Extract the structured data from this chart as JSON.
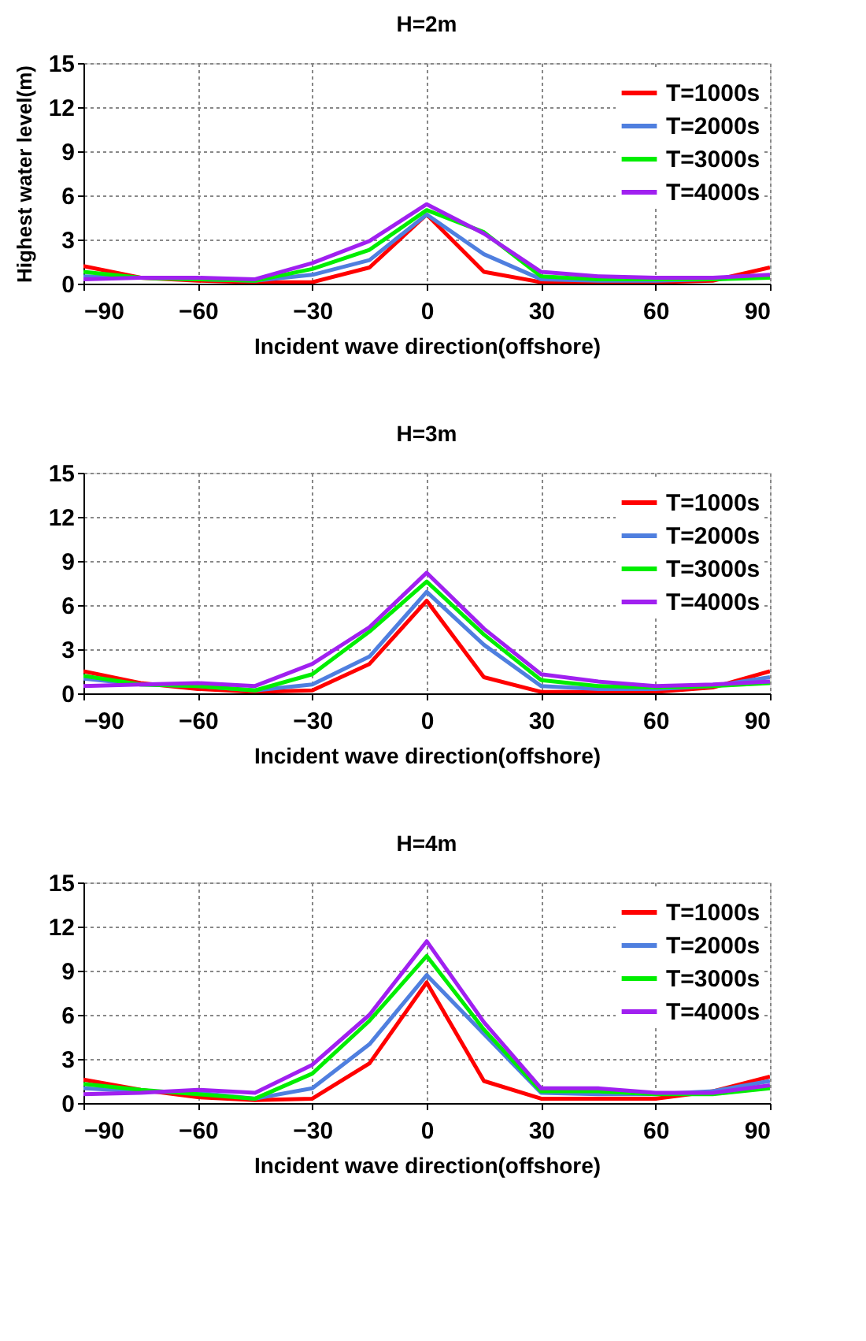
{
  "chart_data": [
    {
      "type": "line",
      "title": "H=2m",
      "xlabel": "Incident wave direction(offshore)",
      "ylabel": "Highest water level(m)",
      "x": [
        -90,
        -75,
        -60,
        -45,
        -30,
        -15,
        0,
        15,
        30,
        45,
        60,
        75,
        90
      ],
      "series": [
        {
          "name": "T=1000s",
          "color": "#ff0000",
          "values": [
            1.2,
            0.4,
            0.2,
            0.1,
            0.1,
            1.1,
            4.7,
            0.8,
            0.1,
            0.1,
            0.1,
            0.2,
            1.1
          ]
        },
        {
          "name": "T=2000s",
          "color": "#4f7fdf",
          "values": [
            0.5,
            0.4,
            0.3,
            0.2,
            0.6,
            1.6,
            4.7,
            2.0,
            0.3,
            0.2,
            0.2,
            0.3,
            0.5
          ]
        },
        {
          "name": "T=3000s",
          "color": "#00ee00",
          "values": [
            0.8,
            0.4,
            0.3,
            0.2,
            1.0,
            2.3,
            5.0,
            3.5,
            0.5,
            0.3,
            0.3,
            0.3,
            0.4
          ]
        },
        {
          "name": "T=4000s",
          "color": "#a020f0",
          "values": [
            0.3,
            0.4,
            0.4,
            0.3,
            1.4,
            2.9,
            5.4,
            3.4,
            0.8,
            0.5,
            0.4,
            0.4,
            0.6
          ]
        }
      ],
      "xlim": [
        -90,
        90
      ],
      "xticks": [
        -90,
        -60,
        -30,
        0,
        30,
        60,
        90
      ],
      "ylim": [
        0,
        15
      ],
      "yticks": [
        0,
        3,
        6,
        9,
        12,
        15
      ],
      "grid": true,
      "legend": "top right",
      "line_style": "solid"
    },
    {
      "type": "line",
      "title": "H=3m",
      "xlabel": "Incident wave direction(offshore)",
      "x": [
        -90,
        -75,
        -60,
        -45,
        -30,
        -15,
        0,
        15,
        30,
        45,
        60,
        75,
        90
      ],
      "series": [
        {
          "name": "T=1000s",
          "color": "#ff0000",
          "values": [
            1.5,
            0.7,
            0.3,
            0.1,
            0.2,
            2.0,
            6.3,
            1.1,
            0.1,
            0.1,
            0.1,
            0.4,
            1.5
          ]
        },
        {
          "name": "T=2000s",
          "color": "#4f7fdf",
          "values": [
            1.0,
            0.6,
            0.5,
            0.2,
            0.6,
            2.5,
            6.9,
            3.3,
            0.5,
            0.3,
            0.3,
            0.5,
            1.1
          ]
        },
        {
          "name": "T=3000s",
          "color": "#00ee00",
          "values": [
            1.2,
            0.6,
            0.5,
            0.2,
            1.3,
            4.2,
            7.6,
            4.0,
            0.9,
            0.5,
            0.4,
            0.5,
            0.7
          ]
        },
        {
          "name": "T=4000s",
          "color": "#a020f0",
          "values": [
            0.5,
            0.6,
            0.7,
            0.5,
            2.0,
            4.5,
            8.2,
            4.4,
            1.3,
            0.8,
            0.5,
            0.6,
            0.8
          ]
        }
      ],
      "xlim": [
        -90,
        90
      ],
      "xticks": [
        -90,
        -60,
        -30,
        0,
        30,
        60,
        90
      ],
      "ylim": [
        0,
        15
      ],
      "yticks": [
        0,
        3,
        6,
        9,
        12,
        15
      ],
      "grid": true,
      "legend": "top right",
      "line_style": "solid"
    },
    {
      "type": "line",
      "title": "H=4m",
      "xlabel": "Incident wave direction(offshore)",
      "x": [
        -90,
        -75,
        -60,
        -45,
        -30,
        -15,
        0,
        15,
        30,
        45,
        60,
        75,
        90
      ],
      "series": [
        {
          "name": "T=1000s",
          "color": "#ff0000",
          "values": [
            1.6,
            0.9,
            0.4,
            0.2,
            0.3,
            2.7,
            8.2,
            1.5,
            0.3,
            0.3,
            0.3,
            0.8,
            1.8
          ]
        },
        {
          "name": "T=2000s",
          "color": "#4f7fdf",
          "values": [
            1.0,
            0.8,
            0.7,
            0.3,
            1.0,
            4.0,
            8.7,
            4.7,
            0.7,
            0.6,
            0.6,
            0.8,
            1.5
          ]
        },
        {
          "name": "T=3000s",
          "color": "#00ee00",
          "values": [
            1.3,
            0.9,
            0.6,
            0.3,
            2.0,
            5.6,
            10.0,
            5.0,
            0.8,
            0.8,
            0.6,
            0.6,
            1.0
          ]
        },
        {
          "name": "T=4000s",
          "color": "#a020f0",
          "values": [
            0.6,
            0.7,
            0.9,
            0.7,
            2.6,
            6.0,
            11.0,
            5.5,
            1.0,
            1.0,
            0.7,
            0.7,
            1.2
          ]
        }
      ],
      "xlim": [
        -90,
        90
      ],
      "xticks": [
        -90,
        -60,
        -30,
        0,
        30,
        60,
        90
      ],
      "ylim": [
        0,
        15
      ],
      "yticks": [
        0,
        3,
        6,
        9,
        12,
        15
      ],
      "grid": true,
      "legend": "top right",
      "line_style": "solid"
    }
  ]
}
